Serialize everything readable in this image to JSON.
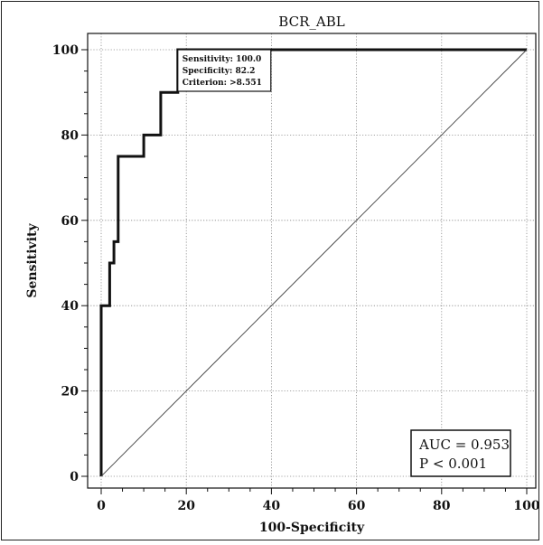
{
  "chart_data": {
    "type": "line",
    "title": "BCR_ABL",
    "xlabel": "100-Specificity",
    "ylabel": "Sensitivity",
    "xlim": [
      0,
      100
    ],
    "ylim": [
      0,
      100
    ],
    "x_ticks": [
      "0",
      "20",
      "40",
      "60",
      "80",
      "100"
    ],
    "y_ticks": [
      "0",
      "20",
      "40",
      "60",
      "80",
      "100"
    ],
    "grid": true,
    "series": [
      {
        "x": [
          0,
          0,
          2,
          2,
          3,
          3,
          4,
          4,
          10,
          10,
          14,
          14,
          18,
          18,
          100
        ],
        "y": [
          0,
          40,
          40,
          50,
          50,
          55,
          55,
          75,
          75,
          80,
          80,
          90,
          90,
          100,
          100
        ]
      },
      {
        "x": [
          0,
          100
        ],
        "y": [
          0,
          100
        ]
      }
    ],
    "annotation": {
      "lines": [
        "Sensitivity: 100.0",
        "Specificity: 82.2",
        "Criterion: >8.551"
      ],
      "x": 18,
      "y": 100
    },
    "stats": {
      "lines": [
        "AUC = 0.953",
        "P < 0.001"
      ]
    }
  }
}
